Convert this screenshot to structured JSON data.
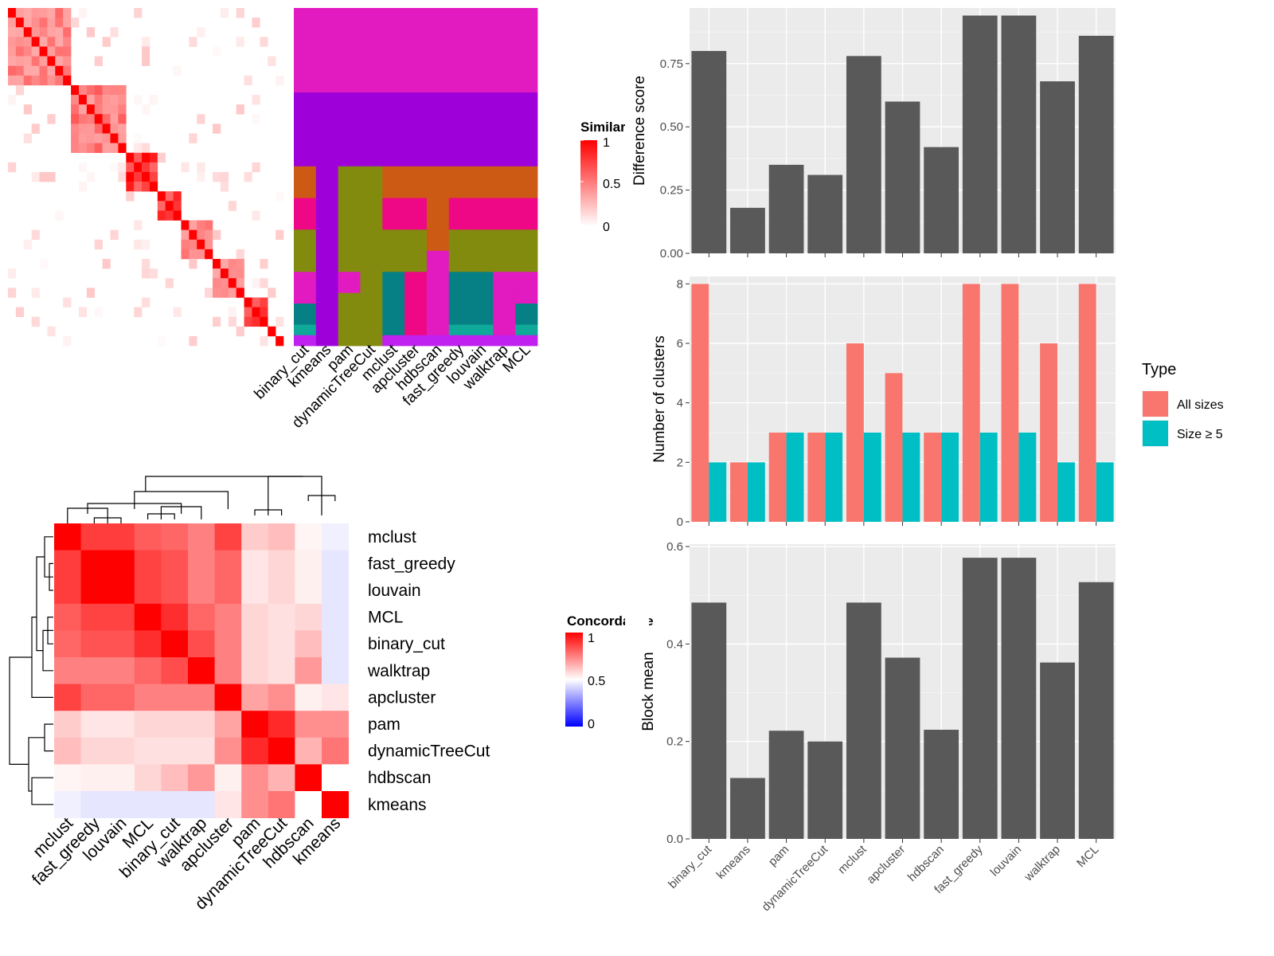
{
  "methods": [
    "binary_cut",
    "kmeans",
    "pam",
    "dynamicTreeCut",
    "mclust",
    "apcluster",
    "hdbscan",
    "fast_greedy",
    "louvain",
    "walktrap",
    "MCL"
  ],
  "chart_data": [
    {
      "type": "heatmap",
      "name": "similarity-heatmap",
      "legend_title": "Similarity",
      "legend_ticks": [
        "1",
        "0.5",
        "0"
      ],
      "legend_colors": [
        "#ffffff",
        "#ff0000"
      ],
      "sample_blocks": [
        {
          "size": 8,
          "within": 0.6
        },
        {
          "size": 7,
          "within": 0.65
        },
        {
          "size": 4,
          "within": 1.0
        },
        {
          "size": 3,
          "within": 0.95
        },
        {
          "size": 4,
          "within": 0.55
        },
        {
          "size": 4,
          "within": 0.55
        },
        {
          "size": 3,
          "within": 0.95
        },
        {
          "size": 1,
          "within": 1.0
        },
        {
          "size": 1,
          "within": 1.0
        }
      ],
      "membership_columns": [
        "binary_cut",
        "kmeans",
        "pam",
        "dynamicTreeCut",
        "mclust",
        "apcluster",
        "hdbscan",
        "fast_greedy",
        "louvain",
        "walktrap",
        "MCL"
      ],
      "membership_row_groups": [
        {
          "rows": 8,
          "colors": [
            "#e11bc0",
            "#e11bc0",
            "#e11bc0",
            "#e11bc0",
            "#e11bc0",
            "#e11bc0",
            "#e11bc0",
            "#e11bc0",
            "#e11bc0",
            "#e11bc0",
            "#e11bc0"
          ]
        },
        {
          "rows": 7,
          "colors": [
            "#9e00d9",
            "#9e00d9",
            "#9e00d9",
            "#9e00d9",
            "#9e00d9",
            "#9e00d9",
            "#9e00d9",
            "#9e00d9",
            "#9e00d9",
            "#9e00d9",
            "#9e00d9"
          ]
        },
        {
          "rows": 3,
          "colors": [
            "#cd5a14",
            "#9e00d9",
            "#838b0e",
            "#838b0e",
            "#cd5a14",
            "#cd5a14",
            "#cd5a14",
            "#cd5a14",
            "#cd5a14",
            "#cd5a14",
            "#cd5a14"
          ]
        },
        {
          "rows": 3,
          "colors": [
            "#ee0885",
            "#9e00d9",
            "#838b0e",
            "#838b0e",
            "#ee0885",
            "#ee0885",
            "#cd5a14",
            "#ee0885",
            "#ee0885",
            "#ee0885",
            "#ee0885"
          ]
        },
        {
          "rows": 2,
          "colors": [
            "#838b0e",
            "#9e00d9",
            "#838b0e",
            "#838b0e",
            "#838b0e",
            "#838b0e",
            "#cd5a14",
            "#838b0e",
            "#838b0e",
            "#838b0e",
            "#838b0e"
          ]
        },
        {
          "rows": 2,
          "colors": [
            "#838b0e",
            "#9e00d9",
            "#838b0e",
            "#838b0e",
            "#838b0e",
            "#838b0e",
            "#e11bc0",
            "#838b0e",
            "#838b0e",
            "#838b0e",
            "#838b0e"
          ]
        },
        {
          "rows": 2,
          "colors": [
            "#e11bc0",
            "#9e00d9",
            "#e11bc0",
            "#838b0e",
            "#068085",
            "#ee0885",
            "#e11bc0",
            "#068085",
            "#068085",
            "#e11bc0",
            "#e11bc0"
          ]
        },
        {
          "rows": 1,
          "colors": [
            "#e11bc0",
            "#9e00d9",
            "#838b0e",
            "#838b0e",
            "#068085",
            "#ee0885",
            "#e11bc0",
            "#068085",
            "#068085",
            "#e11bc0",
            "#e11bc0"
          ]
        },
        {
          "rows": 2,
          "colors": [
            "#068085",
            "#9e00d9",
            "#838b0e",
            "#838b0e",
            "#068085",
            "#ee0885",
            "#e11bc0",
            "#068085",
            "#068085",
            "#e11bc0",
            "#068085"
          ]
        },
        {
          "rows": 1,
          "colors": [
            "#0fa99a",
            "#9e00d9",
            "#838b0e",
            "#838b0e",
            "#068085",
            "#ee0885",
            "#e11bc0",
            "#0fa99a",
            "#0fa99a",
            "#e11bc0",
            "#0fa99a"
          ]
        },
        {
          "rows": 1,
          "colors": [
            "#c020f0",
            "#9e00d9",
            "#838b0e",
            "#838b0e",
            "#c020f0",
            "#c020f0",
            "#c020f0",
            "#c020f0",
            "#c020f0",
            "#c020f0",
            "#c020f0"
          ]
        }
      ]
    },
    {
      "type": "heatmap",
      "name": "concordance-heatmap",
      "legend_title": "Concordance",
      "legend_ticks": [
        "1",
        "0.5",
        "0"
      ],
      "legend_colors": [
        "#0000ff",
        "#ffffff",
        "#ff0000"
      ],
      "labels": [
        "mclust",
        "fast_greedy",
        "louvain",
        "MCL",
        "binary_cut",
        "walktrap",
        "apcluster",
        "pam",
        "dynamicTreeCut",
        "hdbscan",
        "kmeans"
      ],
      "matrix": [
        [
          1.0,
          0.88,
          0.88,
          0.82,
          0.8,
          0.75,
          0.87,
          0.6,
          0.63,
          0.52,
          0.47
        ],
        [
          0.88,
          1.0,
          1.0,
          0.87,
          0.84,
          0.75,
          0.8,
          0.55,
          0.58,
          0.53,
          0.45
        ],
        [
          0.88,
          1.0,
          1.0,
          0.87,
          0.84,
          0.75,
          0.8,
          0.55,
          0.58,
          0.53,
          0.45
        ],
        [
          0.82,
          0.87,
          0.87,
          1.0,
          0.91,
          0.8,
          0.75,
          0.58,
          0.56,
          0.58,
          0.45
        ],
        [
          0.8,
          0.84,
          0.84,
          0.91,
          1.0,
          0.85,
          0.75,
          0.58,
          0.56,
          0.63,
          0.45
        ],
        [
          0.75,
          0.75,
          0.75,
          0.8,
          0.85,
          1.0,
          0.75,
          0.58,
          0.56,
          0.7,
          0.45
        ],
        [
          0.87,
          0.8,
          0.8,
          0.75,
          0.75,
          0.75,
          1.0,
          0.68,
          0.72,
          0.53,
          0.55
        ],
        [
          0.6,
          0.55,
          0.55,
          0.58,
          0.58,
          0.58,
          0.68,
          1.0,
          0.92,
          0.72,
          0.72
        ],
        [
          0.63,
          0.58,
          0.58,
          0.56,
          0.56,
          0.56,
          0.72,
          0.92,
          1.0,
          0.65,
          0.77
        ],
        [
          0.52,
          0.53,
          0.53,
          0.58,
          0.63,
          0.7,
          0.53,
          0.72,
          0.65,
          1.0,
          0.5
        ],
        [
          0.47,
          0.45,
          0.45,
          0.45,
          0.45,
          0.45,
          0.55,
          0.72,
          0.77,
          0.5,
          1.0
        ]
      ]
    },
    {
      "type": "bar",
      "name": "difference-score",
      "categories": [
        "binary_cut",
        "kmeans",
        "pam",
        "dynamicTreeCut",
        "mclust",
        "apcluster",
        "hdbscan",
        "fast_greedy",
        "louvain",
        "walktrap",
        "MCL"
      ],
      "values": [
        0.8,
        0.18,
        0.35,
        0.31,
        0.78,
        0.6,
        0.42,
        0.94,
        0.94,
        0.68,
        0.86
      ],
      "ylabel": "Difference score",
      "ylim": [
        0,
        0.97
      ],
      "yticks": [
        0.0,
        0.25,
        0.5,
        0.75
      ],
      "ytick_labels": [
        "0.00",
        "0.25",
        "0.50",
        "0.75"
      ],
      "grid": true
    },
    {
      "type": "bar",
      "name": "number-of-clusters",
      "categories": [
        "binary_cut",
        "kmeans",
        "pam",
        "dynamicTreeCut",
        "mclust",
        "apcluster",
        "hdbscan",
        "fast_greedy",
        "louvain",
        "walktrap",
        "MCL"
      ],
      "series": [
        {
          "name": "All sizes",
          "color": "#f8766d",
          "values": [
            8,
            2,
            3,
            3,
            6,
            5,
            3,
            8,
            8,
            6,
            8
          ]
        },
        {
          "name": "Size ≥ 5",
          "color": "#00bfc4",
          "values": [
            2,
            2,
            3,
            3,
            3,
            3,
            3,
            3,
            3,
            2,
            2
          ]
        }
      ],
      "ylabel": "Number of clusters",
      "ylim": [
        0,
        8.25
      ],
      "yticks": [
        0,
        2,
        4,
        6,
        8
      ],
      "ytick_labels": [
        "0",
        "2",
        "4",
        "6",
        "8"
      ],
      "legend_title": "Type",
      "legend_position": "right",
      "grid": true
    },
    {
      "type": "bar",
      "name": "block-mean",
      "categories": [
        "binary_cut",
        "kmeans",
        "pam",
        "dynamicTreeCut",
        "mclust",
        "apcluster",
        "hdbscan",
        "fast_greedy",
        "louvain",
        "walktrap",
        "MCL"
      ],
      "values": [
        0.485,
        0.125,
        0.222,
        0.2,
        0.485,
        0.372,
        0.224,
        0.577,
        0.577,
        0.362,
        0.527
      ],
      "ylabel": "Block mean",
      "ylim": [
        0,
        0.605
      ],
      "yticks": [
        0.0,
        0.2,
        0.4,
        0.6
      ],
      "ytick_labels": [
        "0.0",
        "0.2",
        "0.4",
        "0.6"
      ],
      "grid": true
    }
  ]
}
